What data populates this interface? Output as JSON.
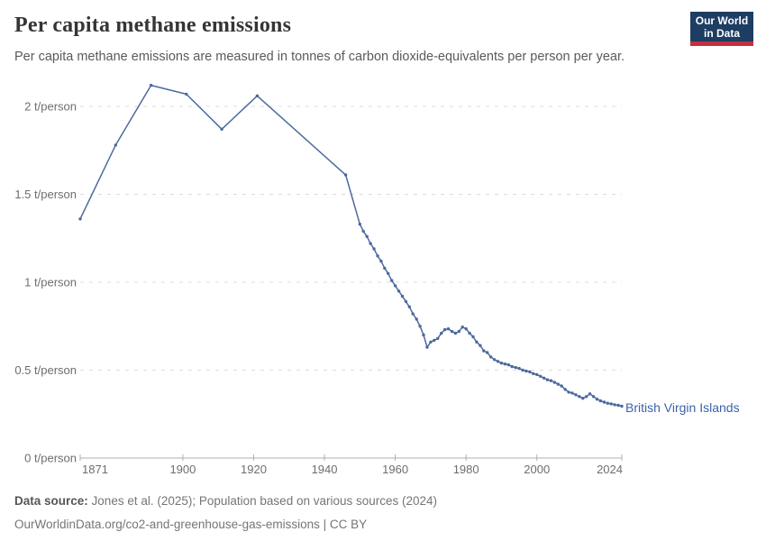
{
  "header": {
    "title": "Per capita methane emissions",
    "subtitle": "Per capita methane emissions are measured in tonnes of carbon dioxide-equivalents per person per year.",
    "logo": {
      "line1": "Our World",
      "line2": "in Data",
      "bg_color": "#1d3d63",
      "accent_color": "#c5303e"
    }
  },
  "chart_data": {
    "type": "line",
    "title": "Per capita methane emissions",
    "xlabel": "",
    "ylabel": "",
    "xlim": [
      1871,
      2024
    ],
    "ylim": [
      0,
      2.2
    ],
    "grid": "horizontal-dashed",
    "x_ticks": [
      1871,
      1900,
      1920,
      1940,
      1960,
      1980,
      2000,
      2024
    ],
    "y_ticks": [
      {
        "value": 0,
        "label": "0 t/person"
      },
      {
        "value": 0.5,
        "label": "0.5 t/person"
      },
      {
        "value": 1,
        "label": "1 t/person"
      },
      {
        "value": 1.5,
        "label": "1.5 t/person"
      },
      {
        "value": 2,
        "label": "2 t/person"
      }
    ],
    "series": [
      {
        "name": "British Virgin Islands",
        "color": "#4c6a9e",
        "label_color": "#3d62a8",
        "points": [
          [
            1871,
            1.36
          ],
          [
            1881,
            1.78
          ],
          [
            1891,
            2.12
          ],
          [
            1901,
            2.07
          ],
          [
            1911,
            1.87
          ],
          [
            1921,
            2.06
          ],
          [
            1946,
            1.61
          ],
          [
            1950,
            1.33
          ],
          [
            1951,
            1.29
          ],
          [
            1952,
            1.26
          ],
          [
            1953,
            1.22
          ],
          [
            1954,
            1.19
          ],
          [
            1955,
            1.15
          ],
          [
            1956,
            1.12
          ],
          [
            1957,
            1.08
          ],
          [
            1958,
            1.05
          ],
          [
            1959,
            1.01
          ],
          [
            1960,
            0.98
          ],
          [
            1961,
            0.95
          ],
          [
            1962,
            0.92
          ],
          [
            1963,
            0.89
          ],
          [
            1964,
            0.86
          ],
          [
            1965,
            0.82
          ],
          [
            1966,
            0.79
          ],
          [
            1967,
            0.75
          ],
          [
            1968,
            0.7
          ],
          [
            1969,
            0.63
          ],
          [
            1970,
            0.66
          ],
          [
            1971,
            0.67
          ],
          [
            1972,
            0.68
          ],
          [
            1973,
            0.71
          ],
          [
            1974,
            0.73
          ],
          [
            1975,
            0.735
          ],
          [
            1976,
            0.72
          ],
          [
            1977,
            0.71
          ],
          [
            1978,
            0.72
          ],
          [
            1979,
            0.745
          ],
          [
            1980,
            0.735
          ],
          [
            1981,
            0.71
          ],
          [
            1982,
            0.69
          ],
          [
            1983,
            0.66
          ],
          [
            1984,
            0.64
          ],
          [
            1985,
            0.61
          ],
          [
            1986,
            0.6
          ],
          [
            1987,
            0.575
          ],
          [
            1988,
            0.56
          ],
          [
            1989,
            0.55
          ],
          [
            1990,
            0.54
          ],
          [
            1991,
            0.535
          ],
          [
            1992,
            0.53
          ],
          [
            1993,
            0.52
          ],
          [
            1994,
            0.515
          ],
          [
            1995,
            0.51
          ],
          [
            1996,
            0.5
          ],
          [
            1997,
            0.495
          ],
          [
            1998,
            0.49
          ],
          [
            1999,
            0.48
          ],
          [
            2000,
            0.475
          ],
          [
            2001,
            0.465
          ],
          [
            2002,
            0.455
          ],
          [
            2003,
            0.445
          ],
          [
            2004,
            0.44
          ],
          [
            2005,
            0.43
          ],
          [
            2006,
            0.42
          ],
          [
            2007,
            0.41
          ],
          [
            2008,
            0.39
          ],
          [
            2009,
            0.375
          ],
          [
            2010,
            0.37
          ],
          [
            2011,
            0.36
          ],
          [
            2012,
            0.35
          ],
          [
            2013,
            0.34
          ],
          [
            2014,
            0.35
          ],
          [
            2015,
            0.365
          ],
          [
            2016,
            0.35
          ],
          [
            2017,
            0.335
          ],
          [
            2018,
            0.325
          ],
          [
            2019,
            0.318
          ],
          [
            2020,
            0.312
          ],
          [
            2021,
            0.308
          ],
          [
            2022,
            0.303
          ],
          [
            2023,
            0.3
          ],
          [
            2024,
            0.295
          ]
        ]
      }
    ]
  },
  "footer": {
    "datasource_label": "Data source:",
    "datasource_text": "Jones et al. (2025); Population based on various sources (2024)",
    "link_line": "OurWorldinData.org/co2-and-greenhouse-gas-emissions | CC BY"
  }
}
